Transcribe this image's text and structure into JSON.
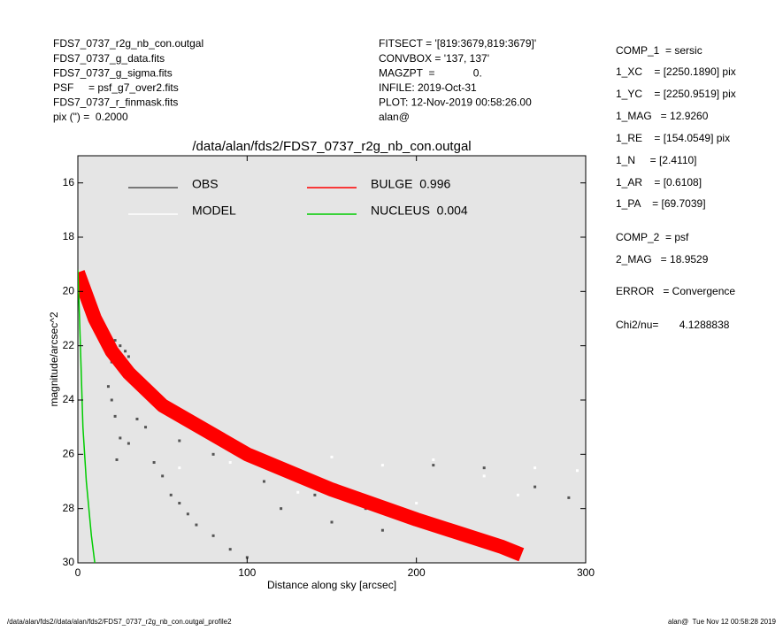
{
  "header": {
    "left": [
      "FDS7_0737_r2g_nb_con.outgal",
      "FDS7_0737_g_data.fits",
      "FDS7_0737_g_sigma.fits",
      "PSF     = psf_g7_over2.fits",
      "FDS7_0737_r_finmask.fits",
      "pix (\") =  0.2000"
    ],
    "middle": [
      "FITSECT = '[819:3679,819:3679]'",
      "CONVBOX = '137, 137'",
      "MAGZPT  =             0.",
      "INFILE: 2019-Oct-31",
      "PLOT: 12-Nov-2019 00:58:26.00",
      "alan@"
    ]
  },
  "params": [
    "COMP_1  = sersic",
    "1_XC    = [2250.1890] pix",
    "1_YC    = [2250.9519] pix",
    "1_MAG   = 12.9260",
    "1_RE    = [154.0549] pix",
    "1_N     = [2.4110]",
    "1_AR    = [0.6108]",
    "1_PA    = [69.7039]",
    "COMP_2  = psf",
    "2_MAG   = 18.9529",
    "ERROR   = Convergence",
    "Chi2/nu=       4.1288838"
  ],
  "footer": {
    "left": "/data/alan/fds2//data/alan/fds2/FDS7_0737_r2g_nb_con.outgal_profile2",
    "right": "alan@  Tue Nov 12 00:58:28 2019"
  },
  "chart_data": {
    "type": "scatter",
    "title": "/data/alan/fds2/FDS7_0737_r2g_nb_con.outgal",
    "xlabel": "Distance along sky [arcsec]",
    "ylabel": "magnitude/arcsec^2",
    "xlim": [
      0,
      300
    ],
    "xticks": [
      0,
      100,
      200,
      300
    ],
    "ylim": [
      30,
      15
    ],
    "yticks": [
      16,
      18,
      20,
      22,
      24,
      26,
      28,
      30
    ],
    "series": [
      {
        "name": "OBS",
        "color": "#555555",
        "mode": "points",
        "x": [
          22,
          25,
          28,
          30,
          20,
          18,
          20,
          22,
          25,
          23,
          30,
          35,
          40,
          45,
          50,
          55,
          60,
          65,
          70,
          80,
          90,
          100,
          120,
          150,
          180,
          210,
          240,
          270,
          290,
          60,
          80,
          110,
          140,
          170,
          200,
          230
        ],
        "values": [
          21.8,
          22,
          22.2,
          22.4,
          22.6,
          23.5,
          24,
          24.6,
          25.4,
          26.2,
          25.6,
          24.7,
          25,
          26.3,
          26.8,
          27.5,
          27.8,
          28.2,
          28.6,
          29,
          29.5,
          29.8,
          28,
          28.5,
          28.8,
          26.4,
          26.5,
          27.2,
          27.6,
          25.5,
          26,
          27,
          27.5,
          28,
          28.6,
          29.2
        ]
      },
      {
        "name": "MODEL",
        "color": "#ffffff",
        "mode": "points",
        "x": [
          60,
          90,
          120,
          150,
          180,
          210,
          240,
          270,
          295,
          130,
          200,
          260
        ],
        "values": [
          26.5,
          26.3,
          26.6,
          26.1,
          26.4,
          26.2,
          26.8,
          26.5,
          26.6,
          27.4,
          27.8,
          27.5
        ]
      },
      {
        "name": "BULGE  0.996",
        "color": "#ff0000",
        "mode": "line",
        "x": [
          0,
          10,
          20,
          30,
          50,
          100,
          150,
          200,
          250,
          262
        ],
        "values": [
          19.3,
          21,
          22.2,
          23,
          24.2,
          26,
          27.3,
          28.4,
          29.4,
          29.7
        ]
      },
      {
        "name": "NUCLEUS  0.004",
        "color": "#00cc00",
        "mode": "line",
        "x": [
          0,
          1,
          2,
          3,
          5,
          8,
          10
        ],
        "values": [
          19.2,
          21,
          23,
          25,
          27,
          29,
          30
        ]
      }
    ]
  }
}
